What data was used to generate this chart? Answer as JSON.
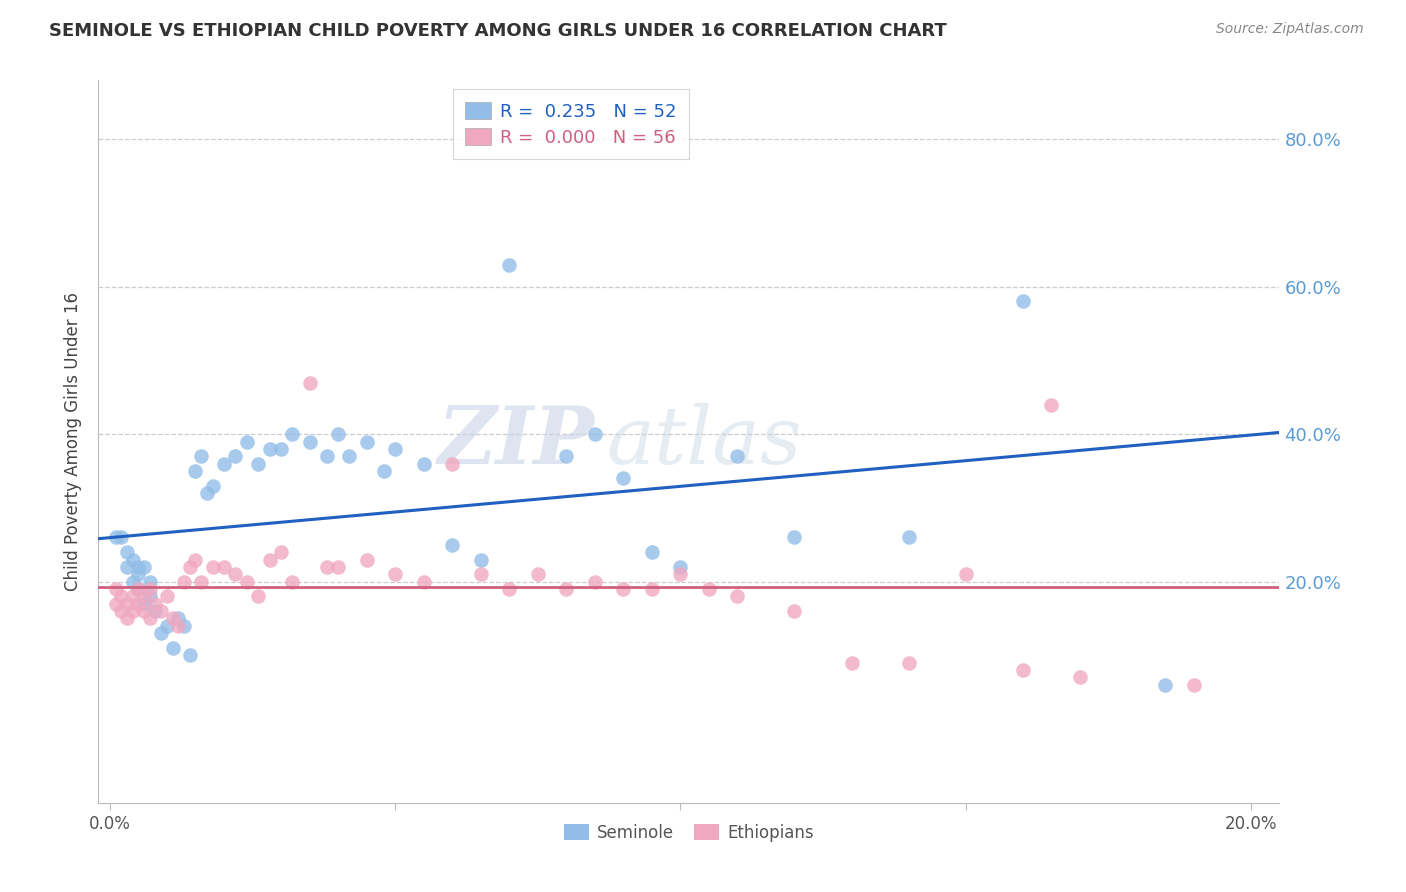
{
  "title": "SEMINOLE VS ETHIOPIAN CHILD POVERTY AMONG GIRLS UNDER 16 CORRELATION CHART",
  "source": "Source: ZipAtlas.com",
  "ylabel": "Child Poverty Among Girls Under 16",
  "ytick_labels": [
    "80.0%",
    "60.0%",
    "40.0%",
    "20.0%"
  ],
  "ytick_values": [
    0.8,
    0.6,
    0.4,
    0.2
  ],
  "ylim": [
    -0.1,
    0.88
  ],
  "xlim": [
    -0.002,
    0.205
  ],
  "background_color": "#ffffff",
  "grid_color": "#cccccc",
  "seminole_color": "#92bde8",
  "ethiopian_color": "#f0a8c0",
  "seminole_line_color": "#2060c0",
  "ethiopian_line_color": "#d06080",
  "legend_seminole_R": "0.235",
  "legend_seminole_N": "52",
  "legend_ethiopian_R": "0.000",
  "legend_ethiopian_N": "56",
  "watermark_zip": "ZIP",
  "watermark_atlas": "atlas",
  "seminole_x": [
    0.001,
    0.002,
    0.003,
    0.003,
    0.004,
    0.004,
    0.005,
    0.005,
    0.005,
    0.006,
    0.006,
    0.007,
    0.007,
    0.008,
    0.009,
    0.01,
    0.011,
    0.012,
    0.013,
    0.014,
    0.015,
    0.016,
    0.017,
    0.018,
    0.02,
    0.022,
    0.024,
    0.026,
    0.028,
    0.03,
    0.032,
    0.035,
    0.038,
    0.04,
    0.042,
    0.045,
    0.048,
    0.05,
    0.055,
    0.06,
    0.065,
    0.07,
    0.08,
    0.085,
    0.09,
    0.095,
    0.1,
    0.11,
    0.12,
    0.14,
    0.16,
    0.185
  ],
  "seminole_y": [
    0.26,
    0.26,
    0.24,
    0.22,
    0.23,
    0.2,
    0.21,
    0.19,
    0.22,
    0.22,
    0.17,
    0.18,
    0.2,
    0.16,
    0.13,
    0.14,
    0.11,
    0.15,
    0.14,
    0.1,
    0.35,
    0.37,
    0.32,
    0.33,
    0.36,
    0.37,
    0.39,
    0.36,
    0.38,
    0.38,
    0.4,
    0.39,
    0.37,
    0.4,
    0.37,
    0.39,
    0.35,
    0.38,
    0.36,
    0.25,
    0.23,
    0.63,
    0.37,
    0.4,
    0.34,
    0.24,
    0.22,
    0.37,
    0.26,
    0.26,
    0.58,
    0.06
  ],
  "ethiopian_x": [
    0.001,
    0.001,
    0.002,
    0.002,
    0.003,
    0.003,
    0.004,
    0.004,
    0.005,
    0.005,
    0.006,
    0.006,
    0.007,
    0.007,
    0.008,
    0.009,
    0.01,
    0.011,
    0.012,
    0.013,
    0.014,
    0.015,
    0.016,
    0.018,
    0.02,
    0.022,
    0.024,
    0.026,
    0.028,
    0.03,
    0.032,
    0.035,
    0.038,
    0.04,
    0.045,
    0.05,
    0.055,
    0.06,
    0.065,
    0.07,
    0.075,
    0.08,
    0.085,
    0.09,
    0.095,
    0.1,
    0.105,
    0.11,
    0.12,
    0.13,
    0.14,
    0.15,
    0.16,
    0.165,
    0.17,
    0.19
  ],
  "ethiopian_y": [
    0.19,
    0.17,
    0.18,
    0.16,
    0.17,
    0.15,
    0.16,
    0.18,
    0.17,
    0.19,
    0.16,
    0.18,
    0.15,
    0.19,
    0.17,
    0.16,
    0.18,
    0.15,
    0.14,
    0.2,
    0.22,
    0.23,
    0.2,
    0.22,
    0.22,
    0.21,
    0.2,
    0.18,
    0.23,
    0.24,
    0.2,
    0.47,
    0.22,
    0.22,
    0.23,
    0.21,
    0.2,
    0.36,
    0.21,
    0.19,
    0.21,
    0.19,
    0.2,
    0.19,
    0.19,
    0.21,
    0.19,
    0.18,
    0.16,
    0.09,
    0.09,
    0.21,
    0.08,
    0.44,
    0.07,
    0.06
  ]
}
